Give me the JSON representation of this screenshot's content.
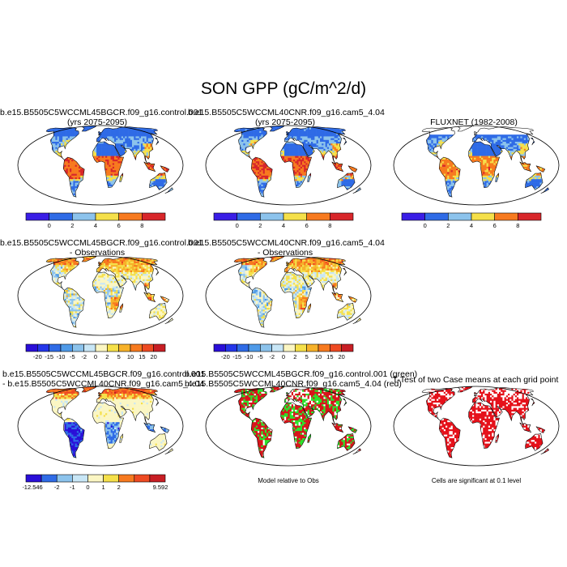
{
  "main_title": "SON GPP (gC/m^2/d)",
  "colors": {
    "gpp_scale": [
      "#3a1ee6",
      "#2f6be6",
      "#8cc3ec",
      "#f5e04a",
      "#f77a1f",
      "#d8262a"
    ],
    "diff_scale": [
      "#2a0fd8",
      "#2436ea",
      "#2f6be6",
      "#4f9ae8",
      "#8cc3ec",
      "#c8e6f6",
      "#fbf6c3",
      "#f5e04a",
      "#f7b22a",
      "#f77a1f",
      "#ee4a22",
      "#c81e24"
    ],
    "case_diff_scale": [
      "#2a0fd8",
      "#2f6be6",
      "#8cc3ec",
      "#c8e6f6",
      "#fbf6c3",
      "#f5e04a",
      "#f77a1f",
      "#ee4a22",
      "#c81e24"
    ],
    "model_relative_green": "#2be32b",
    "model_relative_red": "#d8141a",
    "significance_red": "#e5111a"
  },
  "panels": [
    {
      "id": "p1",
      "title_line1": "b.e15.B5505C5WCCML45BGCR.f09_g16.control.001",
      "title_line2": "(yrs 2075-2095)",
      "colorbar": {
        "labels": [
          "0",
          "2",
          "4",
          "6",
          "8"
        ]
      }
    },
    {
      "id": "p2",
      "title_line1": "b.e15.B5505C5WCCML40CNR.f09_g16.cam5_4.04",
      "title_line2": "(yrs 2075-2095)",
      "colorbar": {
        "labels": [
          "0",
          "2",
          "4",
          "6",
          "8"
        ]
      }
    },
    {
      "id": "p3",
      "title_line1": "FLUXNET (1982-2008)",
      "title_line2": "",
      "colorbar": {
        "labels": [
          "0",
          "2",
          "4",
          "6",
          "8"
        ]
      }
    },
    {
      "id": "p4",
      "title_line1": "b.e15.B5505C5WCCML45BGCR.f09_g16.control.001",
      "title_line2": "- Observations",
      "colorbar": {
        "labels": [
          "-20",
          "-15",
          "-10",
          "-5",
          "-2",
          "0",
          "2",
          "5",
          "10",
          "15",
          "20"
        ]
      }
    },
    {
      "id": "p5",
      "title_line1": "b.e15.B5505C5WCCML40CNR.f09_g16.cam5_4.04",
      "title_line2": "- Observations",
      "colorbar": {
        "labels": [
          "-20",
          "-15",
          "-10",
          "-5",
          "-2",
          "0",
          "2",
          "5",
          "10",
          "15",
          "20"
        ]
      }
    },
    {
      "id": "p6",
      "title_line1": "b.e15.B5505C5WCCML45BGCR.f09_g16.control.001",
      "title_line2": "- b.e15.B5505C5WCCML40CNR.f09_g16.cam5_4.04",
      "colorbar": {
        "labels": [
          "-12.546",
          "-2",
          "-1",
          "0",
          "1",
          "2",
          "9.592"
        ]
      }
    },
    {
      "id": "p7",
      "title_line1": "b.e15.B5505C5WCCML45BGCR.f09_g16.control.001 (green)",
      "title_line2": "b.e15.B5505C5WCCML40CNR.f09_g16.cam5_4.04 (red)",
      "note": "Model relative to Obs"
    },
    {
      "id": "p8",
      "title_line1": "T-Test of two Case means at each grid point",
      "title_line2": "",
      "note": "Cells are significant at 0.1 level"
    }
  ]
}
